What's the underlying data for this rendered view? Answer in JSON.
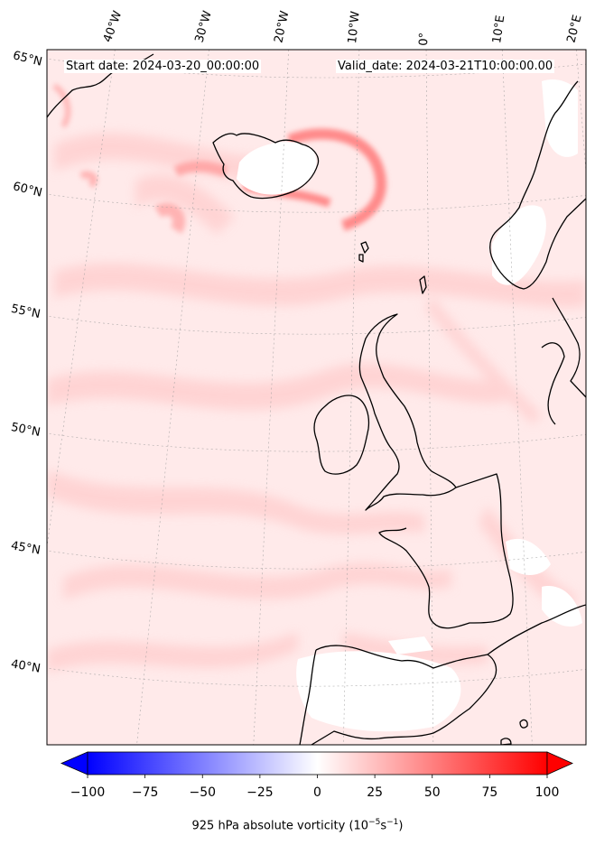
{
  "header": {
    "start_date": "Start date: 2024-03-20_00:00:00",
    "valid_date": "Valid_date: 2024-03-21T10:00:00.00"
  },
  "longitude_labels": [
    "40°W",
    "30°W",
    "20°W",
    "10°W",
    "0°",
    "10°E",
    "20°E"
  ],
  "latitude_labels": [
    "65°N",
    "60°N",
    "55°N",
    "50°N",
    "45°N",
    "40°N"
  ],
  "colorbar": {
    "ticks": [
      "−100",
      "−75",
      "−50",
      "−25",
      "0",
      "25",
      "50",
      "75",
      "100"
    ],
    "title_main": "925 hPa absolute vorticity (10",
    "title_exp1": "−5",
    "title_mid": "s",
    "title_exp2": "−1",
    "title_end": ")",
    "min": -100,
    "max": 100,
    "low_color": "#0000ff",
    "high_color": "#ff0000",
    "mid_color": "#ffffff"
  },
  "colors": {
    "coastline": "#000000",
    "field_base": "#ffe9e9",
    "field_band": "#ffcccc",
    "field_strong": "#ff8080"
  }
}
